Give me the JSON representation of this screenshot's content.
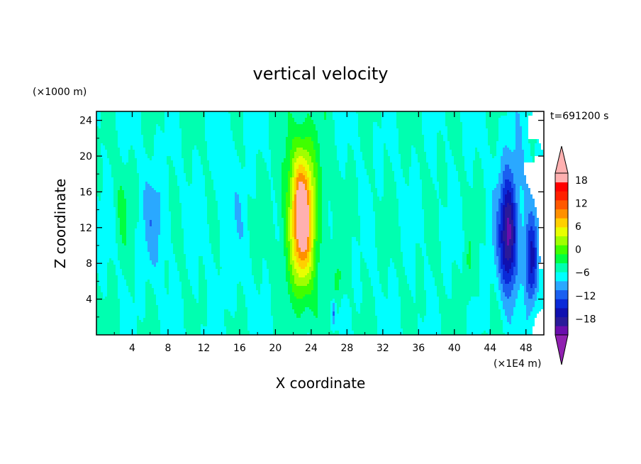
{
  "chart_data": {
    "type": "heatmap",
    "title": "vertical velocity",
    "xlabel": "X coordinate",
    "ylabel": "Z coordinate",
    "x_unit": "(×1E4 m)",
    "y_unit": "(×1000 m)",
    "time_label": "t=691200 s",
    "xlim": [
      0,
      50
    ],
    "ylim": [
      0,
      25
    ],
    "x_ticks": [
      4,
      8,
      12,
      16,
      20,
      24,
      28,
      32,
      36,
      40,
      44,
      48
    ],
    "y_ticks": [
      4,
      8,
      12,
      16,
      20,
      24
    ],
    "colorbar": {
      "min": -21,
      "max": 21,
      "step": 3,
      "tick_values": [
        -18,
        -12,
        -6,
        0,
        6,
        12,
        18
      ],
      "tick_labels": [
        "−18",
        "−12",
        "−6",
        "0",
        "6",
        "12",
        "18"
      ],
      "colors": [
        "#6a0dad",
        "#2a1a9a",
        "#1010b0",
        "#0a2ad8",
        "#1a60f0",
        "#2aa8ff",
        "#00ffff",
        "#00ffb0",
        "#00ff40",
        "#40ff00",
        "#a0ff00",
        "#e8ff00",
        "#ffd000",
        "#ff9000",
        "#ff5800",
        "#ff2000",
        "#ff0000",
        "#ffb0b0"
      ],
      "under_color": "#9020b0",
      "over_color": "#ffb0b0"
    },
    "background_value": 0,
    "features": [
      {
        "name": "central updraft",
        "x": 23,
        "z": 13,
        "sx": 1.3,
        "sz": 7.5,
        "amp": 20
      },
      {
        "name": "central updraft outer",
        "x": 23,
        "z": 14,
        "sx": 2.6,
        "sz": 10,
        "amp": 6
      },
      {
        "name": "left weak updraft",
        "x": 2.8,
        "z": 14,
        "sx": 0.8,
        "sz": 5,
        "amp": 3
      },
      {
        "name": "left weak downdraft",
        "x": 6.5,
        "z": 13,
        "sx": 1.5,
        "sz": 6,
        "amp": -4
      },
      {
        "name": "mid-left downdraft",
        "x": 15,
        "z": 12,
        "sx": 2.5,
        "sz": 10,
        "amp": -1.5
      },
      {
        "name": "right-of-core updraft",
        "x": 27,
        "z": 6,
        "sx": 0.6,
        "sz": 3,
        "amp": 4
      },
      {
        "name": "low downdraft",
        "x": 26.5,
        "z": 2.5,
        "sx": 0.3,
        "sz": 1.5,
        "amp": -8
      },
      {
        "name": "right band updraft",
        "x": 41.5,
        "z": 7,
        "sx": 0.5,
        "sz": 4,
        "amp": 3
      },
      {
        "name": "right downdraft core",
        "x": 46,
        "z": 11,
        "sx": 0.9,
        "sz": 6,
        "amp": -15
      },
      {
        "name": "right downdraft outer",
        "x": 46.5,
        "z": 13,
        "sx": 2,
        "sz": 9,
        "amp": -5
      },
      {
        "name": "far right downdraft",
        "x": 48.6,
        "z": 8,
        "sx": 0.7,
        "sz": 5,
        "amp": -12
      },
      {
        "name": "far right updraft",
        "x": 47.5,
        "z": 3.5,
        "sx": 0.4,
        "sz": 2.5,
        "amp": 3
      }
    ]
  }
}
